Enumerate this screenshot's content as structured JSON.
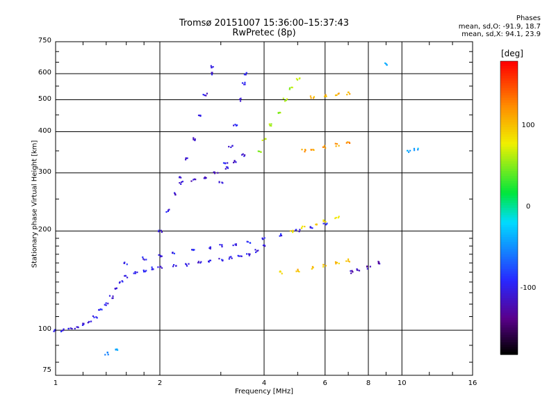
{
  "header": {
    "title": "Tromsø 20151007 15:36:00–15:37:43",
    "subtitle": "RwPretec (8p)"
  },
  "stats": {
    "heading": "Phases",
    "o_mode": "mean, sd,O: -91.9, 18.7",
    "x_mode": "mean, sd,X:  94.1, 23.9"
  },
  "colorbar": {
    "unit": "[deg]",
    "range": [
      -180,
      180
    ],
    "ticks": [
      {
        "value": 100,
        "label": "100"
      },
      {
        "value": 0,
        "label": "0"
      },
      {
        "value": -100,
        "label": "-100"
      }
    ]
  },
  "chart_data": {
    "type": "scatter",
    "xlabel": "Frequency [MHz]",
    "ylabel": "Stationary phase Virtual Height [km]",
    "x_scale": "log",
    "y_scale": "log",
    "xlim": [
      1,
      16
    ],
    "ylim": [
      73,
      750
    ],
    "x_ticks": [
      {
        "value": 1,
        "label": "1"
      },
      {
        "value": 2,
        "label": "2"
      },
      {
        "value": 4,
        "label": "4"
      },
      {
        "value": 6,
        "label": "6"
      },
      {
        "value": 8,
        "label": "8"
      },
      {
        "value": 10,
        "label": "10"
      },
      {
        "value": 16,
        "label": "16"
      }
    ],
    "y_ticks": [
      {
        "value": 75,
        "label": "75"
      },
      {
        "value": 100,
        "label": "100"
      },
      {
        "value": 200,
        "label": "200"
      },
      {
        "value": 300,
        "label": "300"
      },
      {
        "value": 400,
        "label": "400"
      },
      {
        "value": 500,
        "label": "500"
      },
      {
        "value": 600,
        "label": "600"
      },
      {
        "value": 750,
        "label": "750"
      }
    ],
    "grid": true,
    "color_variable": "phase [deg]",
    "traces": [
      {
        "mode": "O",
        "phase": -100,
        "points": [
          [
            1.0,
            100
          ],
          [
            1.05,
            100
          ],
          [
            1.1,
            101
          ],
          [
            1.15,
            102
          ],
          [
            1.2,
            104
          ],
          [
            1.25,
            106
          ],
          [
            1.3,
            110
          ],
          [
            1.35,
            115
          ],
          [
            1.4,
            120
          ],
          [
            1.45,
            126
          ],
          [
            1.5,
            133
          ],
          [
            1.55,
            140
          ],
          [
            1.6,
            145
          ],
          [
            1.7,
            150
          ],
          [
            1.8,
            152
          ],
          [
            1.9,
            154
          ],
          [
            2.0,
            155
          ],
          [
            2.2,
            157
          ],
          [
            2.4,
            158
          ],
          [
            2.6,
            160
          ],
          [
            2.8,
            162
          ],
          [
            3.0,
            164
          ],
          [
            3.2,
            166
          ],
          [
            3.4,
            168
          ],
          [
            3.6,
            170
          ],
          [
            3.8,
            174
          ],
          [
            4.0,
            180
          ]
        ]
      },
      {
        "mode": "O",
        "phase": -95,
        "points": [
          [
            1.6,
            160
          ],
          [
            1.8,
            165
          ],
          [
            2.0,
            168
          ],
          [
            2.2,
            171
          ],
          [
            2.5,
            175
          ],
          [
            2.8,
            178
          ],
          [
            3.0,
            180
          ],
          [
            3.3,
            182
          ],
          [
            3.6,
            185
          ],
          [
            4.0,
            190
          ],
          [
            4.5,
            195
          ],
          [
            5.0,
            200
          ],
          [
            5.5,
            205
          ],
          [
            6.0,
            210
          ]
        ]
      },
      {
        "mode": "O",
        "phase": -105,
        "points": [
          [
            2.0,
            200
          ],
          [
            2.1,
            230
          ],
          [
            2.2,
            260
          ],
          [
            2.3,
            290
          ],
          [
            2.4,
            330
          ],
          [
            2.5,
            380
          ],
          [
            2.6,
            450
          ],
          [
            2.7,
            520
          ],
          [
            2.8,
            600
          ],
          [
            2.85,
            630
          ]
        ]
      },
      {
        "mode": "O",
        "phase": -100,
        "points": [
          [
            3.0,
            280
          ],
          [
            3.1,
            320
          ],
          [
            3.2,
            360
          ],
          [
            3.3,
            420
          ],
          [
            3.4,
            500
          ],
          [
            3.5,
            560
          ],
          [
            3.55,
            600
          ]
        ]
      },
      {
        "mode": "O",
        "phase": -110,
        "points": [
          [
            2.3,
            280
          ],
          [
            2.5,
            285
          ],
          [
            2.7,
            290
          ],
          [
            2.9,
            300
          ],
          [
            3.1,
            310
          ],
          [
            3.3,
            325
          ],
          [
            3.5,
            340
          ]
        ]
      },
      {
        "mode": "X",
        "phase": 60,
        "points": [
          [
            3.9,
            350
          ],
          [
            4.0,
            380
          ],
          [
            4.2,
            420
          ],
          [
            4.4,
            460
          ],
          [
            4.6,
            500
          ],
          [
            4.8,
            540
          ],
          [
            5.0,
            580
          ]
        ]
      },
      {
        "mode": "X",
        "phase": 120,
        "points": [
          [
            5.2,
            350
          ],
          [
            5.5,
            355
          ],
          [
            6.0,
            360
          ],
          [
            6.5,
            365
          ],
          [
            7.0,
            370
          ]
        ]
      },
      {
        "mode": "X",
        "phase": 110,
        "points": [
          [
            5.5,
            510
          ],
          [
            6.0,
            515
          ],
          [
            6.5,
            520
          ],
          [
            7.0,
            522
          ]
        ]
      },
      {
        "mode": "X",
        "phase": 100,
        "points": [
          [
            4.5,
            150
          ],
          [
            5.0,
            152
          ],
          [
            5.5,
            155
          ],
          [
            6.0,
            157
          ],
          [
            6.5,
            160
          ],
          [
            7.0,
            163
          ]
        ]
      },
      {
        "mode": "X",
        "phase": 90,
        "points": [
          [
            4.8,
            200
          ],
          [
            5.2,
            205
          ],
          [
            5.6,
            210
          ],
          [
            6.0,
            215
          ],
          [
            6.5,
            220
          ]
        ]
      },
      {
        "mode": "O",
        "phase": -120,
        "points": [
          [
            7.2,
            150
          ],
          [
            7.5,
            152
          ],
          [
            8.0,
            155
          ],
          [
            8.5,
            160
          ]
        ]
      },
      {
        "mode": "O",
        "phase": -40,
        "points": [
          [
            1.4,
            85
          ],
          [
            1.5,
            87
          ],
          [
            9.0,
            640
          ],
          [
            10.5,
            350
          ],
          [
            11.0,
            355
          ]
        ]
      }
    ]
  }
}
